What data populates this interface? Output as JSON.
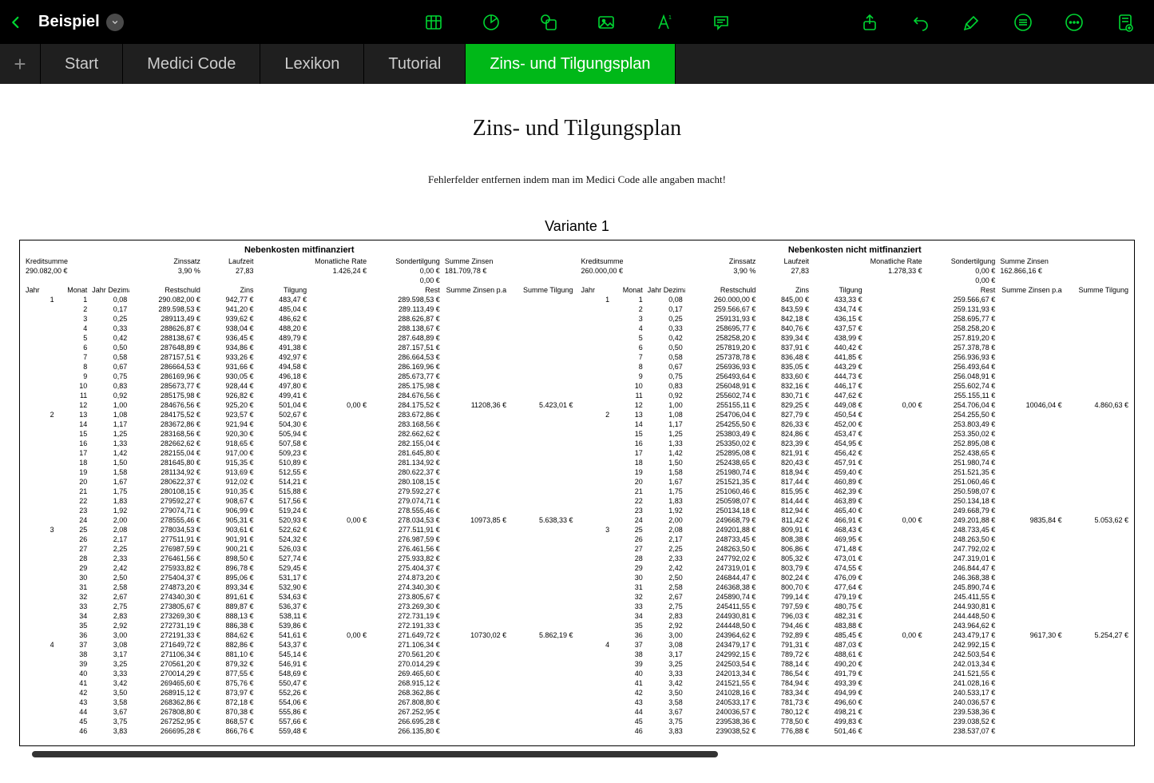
{
  "header": {
    "doc_title": "Beispiel"
  },
  "tabs": {
    "items": [
      "Start",
      "Medici Code",
      "Lexikon",
      "Tutorial",
      "Zins- und Tilgungsplan"
    ],
    "active_index": 4
  },
  "doc": {
    "heading": "Zins- und Tilgungsplan",
    "sub": "Fehlerfelder entfernen indem man im Medici Code alle angaben macht!",
    "variant": "Variante 1",
    "section_left": "Nebenkosten mitfinanziert",
    "section_right": "Nebenkosten nicht mitfinanziert",
    "summary_labels": {
      "kreditsumme": "Kreditsumme",
      "zinssatz": "Zinssatz",
      "laufzeit": "Laufzeit",
      "monatliche_rate": "Monatliche Rate",
      "sondertilgung": "Sondertilgung",
      "summe_zinsen": "Summe Zinsen"
    },
    "col_labels": {
      "jahr": "Jahr",
      "monat": "Monat",
      "jahr_dezimal": "Jahr Dezimal",
      "restschuld": "Restschuld",
      "zins": "Zins",
      "tilgung": "Tilgung",
      "sond": "Sondertilgung",
      "rest": "Rest",
      "sz_pa": "Summe Zinsen p.a",
      "s_tilg": "Summe Tilgung"
    }
  },
  "left": {
    "summary": {
      "kreditsumme": "290.082,00 €",
      "zinssatz": "3,90 %",
      "laufzeit": "27,83",
      "monatliche_rate": "1.426,24 €",
      "sondertilgung": "0,00 €",
      "summe_zinsen": "181.709,78 €"
    },
    "rows": [
      {
        "jahr": "1",
        "mon": "1",
        "jd": "0,08",
        "rest": "290.082,00 €",
        "zins": "942,77 €",
        "tilg": "483,47 €",
        "restn": "289.598,53 €"
      },
      {
        "mon": "2",
        "jd": "0,17",
        "rest": "289.598,53 €",
        "zins": "941,20 €",
        "tilg": "485,04 €",
        "restn": "289.113,49 €"
      },
      {
        "mon": "3",
        "jd": "0,25",
        "rest": "289113,49 €",
        "zins": "939,62 €",
        "tilg": "486,62 €",
        "restn": "288.626,87 €"
      },
      {
        "mon": "4",
        "jd": "0,33",
        "rest": "288626,87 €",
        "zins": "938,04 €",
        "tilg": "488,20 €",
        "restn": "288.138,67 €"
      },
      {
        "mon": "5",
        "jd": "0,42",
        "rest": "288138,67 €",
        "zins": "936,45 €",
        "tilg": "489,79 €",
        "restn": "287.648,89 €"
      },
      {
        "mon": "6",
        "jd": "0,50",
        "rest": "287648,89 €",
        "zins": "934,86 €",
        "tilg": "491,38 €",
        "restn": "287.157,51 €"
      },
      {
        "mon": "7",
        "jd": "0,58",
        "rest": "287157,51 €",
        "zins": "933,26 €",
        "tilg": "492,97 €",
        "restn": "286.664,53 €"
      },
      {
        "mon": "8",
        "jd": "0,67",
        "rest": "286664,53 €",
        "zins": "931,66 €",
        "tilg": "494,58 €",
        "restn": "286.169,96 €"
      },
      {
        "mon": "9",
        "jd": "0,75",
        "rest": "286169,96 €",
        "zins": "930,05 €",
        "tilg": "496,18 €",
        "restn": "285.673,77 €"
      },
      {
        "mon": "10",
        "jd": "0,83",
        "rest": "285673,77 €",
        "zins": "928,44 €",
        "tilg": "497,80 €",
        "restn": "285.175,98 €"
      },
      {
        "mon": "11",
        "jd": "0,92",
        "rest": "285175,98 €",
        "zins": "926,82 €",
        "tilg": "499,41 €",
        "restn": "284.676,56 €"
      },
      {
        "mon": "12",
        "jd": "1,00",
        "rest": "284676,56 €",
        "zins": "925,20 €",
        "tilg": "501,04 €",
        "sond": "0,00 €",
        "restn": "284.175,52 €",
        "szpa": "11208,36 €",
        "stilg": "5.423,01 €"
      },
      {
        "jahr": "2",
        "mon": "13",
        "jd": "1,08",
        "rest": "284175,52 €",
        "zins": "923,57 €",
        "tilg": "502,67 €",
        "restn": "283.672,86 €"
      },
      {
        "mon": "14",
        "jd": "1,17",
        "rest": "283672,86 €",
        "zins": "921,94 €",
        "tilg": "504,30 €",
        "restn": "283.168,56 €"
      },
      {
        "mon": "15",
        "jd": "1,25",
        "rest": "283168,56 €",
        "zins": "920,30 €",
        "tilg": "505,94 €",
        "restn": "282.662,62 €"
      },
      {
        "mon": "16",
        "jd": "1,33",
        "rest": "282662,62 €",
        "zins": "918,65 €",
        "tilg": "507,58 €",
        "restn": "282.155,04 €"
      },
      {
        "mon": "17",
        "jd": "1,42",
        "rest": "282155,04 €",
        "zins": "917,00 €",
        "tilg": "509,23 €",
        "restn": "281.645,80 €"
      },
      {
        "mon": "18",
        "jd": "1,50",
        "rest": "281645,80 €",
        "zins": "915,35 €",
        "tilg": "510,89 €",
        "restn": "281.134,92 €"
      },
      {
        "mon": "19",
        "jd": "1,58",
        "rest": "281134,92 €",
        "zins": "913,69 €",
        "tilg": "512,55 €",
        "restn": "280.622,37 €"
      },
      {
        "mon": "20",
        "jd": "1,67",
        "rest": "280622,37 €",
        "zins": "912,02 €",
        "tilg": "514,21 €",
        "restn": "280.108,15 €"
      },
      {
        "mon": "21",
        "jd": "1,75",
        "rest": "280108,15 €",
        "zins": "910,35 €",
        "tilg": "515,88 €",
        "restn": "279.592,27 €"
      },
      {
        "mon": "22",
        "jd": "1,83",
        "rest": "279592,27 €",
        "zins": "908,67 €",
        "tilg": "517,56 €",
        "restn": "279.074,71 €"
      },
      {
        "mon": "23",
        "jd": "1,92",
        "rest": "279074,71 €",
        "zins": "906,99 €",
        "tilg": "519,24 €",
        "restn": "278.555,46 €"
      },
      {
        "mon": "24",
        "jd": "2,00",
        "rest": "278555,46 €",
        "zins": "905,31 €",
        "tilg": "520,93 €",
        "sond": "0,00 €",
        "restn": "278.034,53 €",
        "szpa": "10973,85 €",
        "stilg": "5.638,33 €"
      },
      {
        "jahr": "3",
        "mon": "25",
        "jd": "2,08",
        "rest": "278034,53 €",
        "zins": "903,61 €",
        "tilg": "522,62 €",
        "restn": "277.511,91 €"
      },
      {
        "mon": "26",
        "jd": "2,17",
        "rest": "277511,91 €",
        "zins": "901,91 €",
        "tilg": "524,32 €",
        "restn": "276.987,59 €"
      },
      {
        "mon": "27",
        "jd": "2,25",
        "rest": "276987,59 €",
        "zins": "900,21 €",
        "tilg": "526,03 €",
        "restn": "276.461,56 €"
      },
      {
        "mon": "28",
        "jd": "2,33",
        "rest": "276461,56 €",
        "zins": "898,50 €",
        "tilg": "527,74 €",
        "restn": "275.933,82 €"
      },
      {
        "mon": "29",
        "jd": "2,42",
        "rest": "275933,82 €",
        "zins": "896,78 €",
        "tilg": "529,45 €",
        "restn": "275.404,37 €"
      },
      {
        "mon": "30",
        "jd": "2,50",
        "rest": "275404,37 €",
        "zins": "895,06 €",
        "tilg": "531,17 €",
        "restn": "274.873,20 €"
      },
      {
        "mon": "31",
        "jd": "2,58",
        "rest": "274873,20 €",
        "zins": "893,34 €",
        "tilg": "532,90 €",
        "restn": "274.340,30 €"
      },
      {
        "mon": "32",
        "jd": "2,67",
        "rest": "274340,30 €",
        "zins": "891,61 €",
        "tilg": "534,63 €",
        "restn": "273.805,67 €"
      },
      {
        "mon": "33",
        "jd": "2,75",
        "rest": "273805,67 €",
        "zins": "889,87 €",
        "tilg": "536,37 €",
        "restn": "273.269,30 €"
      },
      {
        "mon": "34",
        "jd": "2,83",
        "rest": "273269,30 €",
        "zins": "888,13 €",
        "tilg": "538,11 €",
        "restn": "272.731,19 €"
      },
      {
        "mon": "35",
        "jd": "2,92",
        "rest": "272731,19 €",
        "zins": "886,38 €",
        "tilg": "539,86 €",
        "restn": "272.191,33 €"
      },
      {
        "mon": "36",
        "jd": "3,00",
        "rest": "272191,33 €",
        "zins": "884,62 €",
        "tilg": "541,61 €",
        "sond": "0,00 €",
        "restn": "271.649,72 €",
        "szpa": "10730,02 €",
        "stilg": "5.862,19 €"
      },
      {
        "jahr": "4",
        "mon": "37",
        "jd": "3,08",
        "rest": "271649,72 €",
        "zins": "882,86 €",
        "tilg": "543,37 €",
        "restn": "271.106,34 €"
      },
      {
        "mon": "38",
        "jd": "3,17",
        "rest": "271106,34 €",
        "zins": "881,10 €",
        "tilg": "545,14 €",
        "restn": "270.561,20 €"
      },
      {
        "mon": "39",
        "jd": "3,25",
        "rest": "270561,20 €",
        "zins": "879,32 €",
        "tilg": "546,91 €",
        "restn": "270.014,29 €"
      },
      {
        "mon": "40",
        "jd": "3,33",
        "rest": "270014,29 €",
        "zins": "877,55 €",
        "tilg": "548,69 €",
        "restn": "269.465,60 €"
      },
      {
        "mon": "41",
        "jd": "3,42",
        "rest": "269465,60 €",
        "zins": "875,76 €",
        "tilg": "550,47 €",
        "restn": "268.915,12 €"
      },
      {
        "mon": "42",
        "jd": "3,50",
        "rest": "268915,12 €",
        "zins": "873,97 €",
        "tilg": "552,26 €",
        "restn": "268.362,86 €"
      },
      {
        "mon": "43",
        "jd": "3,58",
        "rest": "268362,86 €",
        "zins": "872,18 €",
        "tilg": "554,06 €",
        "restn": "267.808,80 €"
      },
      {
        "mon": "44",
        "jd": "3,67",
        "rest": "267808,80 €",
        "zins": "870,38 €",
        "tilg": "555,86 €",
        "restn": "267.252,95 €"
      },
      {
        "mon": "45",
        "jd": "3,75",
        "rest": "267252,95 €",
        "zins": "868,57 €",
        "tilg": "557,66 €",
        "restn": "266.695,28 €"
      },
      {
        "mon": "46",
        "jd": "3,83",
        "rest": "266695,28 €",
        "zins": "866,76 €",
        "tilg": "559,48 €",
        "restn": "266.135,80 €"
      }
    ]
  },
  "right": {
    "summary": {
      "kreditsumme": "260.000,00 €",
      "zinssatz": "3,90 %",
      "laufzeit": "27,83",
      "monatliche_rate": "1.278,33 €",
      "sondertilgung": "0,00 €",
      "summe_zinsen": "162.866,16 €"
    },
    "rows": [
      {
        "jahr": "1",
        "mon": "1",
        "jd": "0,08",
        "rest": "260.000,00 €",
        "zins": "845,00 €",
        "tilg": "433,33 €",
        "restn": "259.566,67 €"
      },
      {
        "mon": "2",
        "jd": "0,17",
        "rest": "259.566,67 €",
        "zins": "843,59 €",
        "tilg": "434,74 €",
        "restn": "259.131,93 €"
      },
      {
        "mon": "3",
        "jd": "0,25",
        "rest": "259131,93 €",
        "zins": "842,18 €",
        "tilg": "436,15 €",
        "restn": "258.695,77 €"
      },
      {
        "mon": "4",
        "jd": "0,33",
        "rest": "258695,77 €",
        "zins": "840,76 €",
        "tilg": "437,57 €",
        "restn": "258.258,20 €"
      },
      {
        "mon": "5",
        "jd": "0,42",
        "rest": "258258,20 €",
        "zins": "839,34 €",
        "tilg": "438,99 €",
        "restn": "257.819,20 €"
      },
      {
        "mon": "6",
        "jd": "0,50",
        "rest": "257819,20 €",
        "zins": "837,91 €",
        "tilg": "440,42 €",
        "restn": "257.378,78 €"
      },
      {
        "mon": "7",
        "jd": "0,58",
        "rest": "257378,78 €",
        "zins": "836,48 €",
        "tilg": "441,85 €",
        "restn": "256.936,93 €"
      },
      {
        "mon": "8",
        "jd": "0,67",
        "rest": "256936,93 €",
        "zins": "835,05 €",
        "tilg": "443,29 €",
        "restn": "256.493,64 €"
      },
      {
        "mon": "9",
        "jd": "0,75",
        "rest": "256493,64 €",
        "zins": "833,60 €",
        "tilg": "444,73 €",
        "restn": "256.048,91 €"
      },
      {
        "mon": "10",
        "jd": "0,83",
        "rest": "256048,91 €",
        "zins": "832,16 €",
        "tilg": "446,17 €",
        "restn": "255.602,74 €"
      },
      {
        "mon": "11",
        "jd": "0,92",
        "rest": "255602,74 €",
        "zins": "830,71 €",
        "tilg": "447,62 €",
        "restn": "255.155,11 €"
      },
      {
        "mon": "12",
        "jd": "1,00",
        "rest": "255155,11 €",
        "zins": "829,25 €",
        "tilg": "449,08 €",
        "sond": "0,00 €",
        "restn": "254.706,04 €",
        "szpa": "10046,04 €",
        "stilg": "4.860,63 €"
      },
      {
        "jahr": "2",
        "mon": "13",
        "jd": "1,08",
        "rest": "254706,04 €",
        "zins": "827,79 €",
        "tilg": "450,54 €",
        "restn": "254.255,50 €"
      },
      {
        "mon": "14",
        "jd": "1,17",
        "rest": "254255,50 €",
        "zins": "826,33 €",
        "tilg": "452,00 €",
        "restn": "253.803,49 €"
      },
      {
        "mon": "15",
        "jd": "1,25",
        "rest": "253803,49 €",
        "zins": "824,86 €",
        "tilg": "453,47 €",
        "restn": "253.350,02 €"
      },
      {
        "mon": "16",
        "jd": "1,33",
        "rest": "253350,02 €",
        "zins": "823,39 €",
        "tilg": "454,95 €",
        "restn": "252.895,08 €"
      },
      {
        "mon": "17",
        "jd": "1,42",
        "rest": "252895,08 €",
        "zins": "821,91 €",
        "tilg": "456,42 €",
        "restn": "252.438,65 €"
      },
      {
        "mon": "18",
        "jd": "1,50",
        "rest": "252438,65 €",
        "zins": "820,43 €",
        "tilg": "457,91 €",
        "restn": "251.980,74 €"
      },
      {
        "mon": "19",
        "jd": "1,58",
        "rest": "251980,74 €",
        "zins": "818,94 €",
        "tilg": "459,40 €",
        "restn": "251.521,35 €"
      },
      {
        "mon": "20",
        "jd": "1,67",
        "rest": "251521,35 €",
        "zins": "817,44 €",
        "tilg": "460,89 €",
        "restn": "251.060,46 €"
      },
      {
        "mon": "21",
        "jd": "1,75",
        "rest": "251060,46 €",
        "zins": "815,95 €",
        "tilg": "462,39 €",
        "restn": "250.598,07 €"
      },
      {
        "mon": "22",
        "jd": "1,83",
        "rest": "250598,07 €",
        "zins": "814,44 €",
        "tilg": "463,89 €",
        "restn": "250.134,18 €"
      },
      {
        "mon": "23",
        "jd": "1,92",
        "rest": "250134,18 €",
        "zins": "812,94 €",
        "tilg": "465,40 €",
        "restn": "249.668,79 €"
      },
      {
        "mon": "24",
        "jd": "2,00",
        "rest": "249668,79 €",
        "zins": "811,42 €",
        "tilg": "466,91 €",
        "sond": "0,00 €",
        "restn": "249.201,88 €",
        "szpa": "9835,84 €",
        "stilg": "5.053,62 €"
      },
      {
        "jahr": "3",
        "mon": "25",
        "jd": "2,08",
        "rest": "249201,88 €",
        "zins": "809,91 €",
        "tilg": "468,43 €",
        "restn": "248.733,45 €"
      },
      {
        "mon": "26",
        "jd": "2,17",
        "rest": "248733,45 €",
        "zins": "808,38 €",
        "tilg": "469,95 €",
        "restn": "248.263,50 €"
      },
      {
        "mon": "27",
        "jd": "2,25",
        "rest": "248263,50 €",
        "zins": "806,86 €",
        "tilg": "471,48 €",
        "restn": "247.792,02 €"
      },
      {
        "mon": "28",
        "jd": "2,33",
        "rest": "247792,02 €",
        "zins": "805,32 €",
        "tilg": "473,01 €",
        "restn": "247.319,01 €"
      },
      {
        "mon": "29",
        "jd": "2,42",
        "rest": "247319,01 €",
        "zins": "803,79 €",
        "tilg": "474,55 €",
        "restn": "246.844,47 €"
      },
      {
        "mon": "30",
        "jd": "2,50",
        "rest": "246844,47 €",
        "zins": "802,24 €",
        "tilg": "476,09 €",
        "restn": "246.368,38 €"
      },
      {
        "mon": "31",
        "jd": "2,58",
        "rest": "246368,38 €",
        "zins": "800,70 €",
        "tilg": "477,64 €",
        "restn": "245.890,74 €"
      },
      {
        "mon": "32",
        "jd": "2,67",
        "rest": "245890,74 €",
        "zins": "799,14 €",
        "tilg": "479,19 €",
        "restn": "245.411,55 €"
      },
      {
        "mon": "33",
        "jd": "2,75",
        "rest": "245411,55 €",
        "zins": "797,59 €",
        "tilg": "480,75 €",
        "restn": "244.930,81 €"
      },
      {
        "mon": "34",
        "jd": "2,83",
        "rest": "244930,81 €",
        "zins": "796,03 €",
        "tilg": "482,31 €",
        "restn": "244.448,50 €"
      },
      {
        "mon": "35",
        "jd": "2,92",
        "rest": "244448,50 €",
        "zins": "794,46 €",
        "tilg": "483,88 €",
        "restn": "243.964,62 €"
      },
      {
        "mon": "36",
        "jd": "3,00",
        "rest": "243964,62 €",
        "zins": "792,89 €",
        "tilg": "485,45 €",
        "sond": "0,00 €",
        "restn": "243.479,17 €",
        "szpa": "9617,30 €",
        "stilg": "5.254,27 €"
      },
      {
        "jahr": "4",
        "mon": "37",
        "jd": "3,08",
        "rest": "243479,17 €",
        "zins": "791,31 €",
        "tilg": "487,03 €",
        "restn": "242.992,15 €"
      },
      {
        "mon": "38",
        "jd": "3,17",
        "rest": "242992,15 €",
        "zins": "789,72 €",
        "tilg": "488,61 €",
        "restn": "242.503,54 €"
      },
      {
        "mon": "39",
        "jd": "3,25",
        "rest": "242503,54 €",
        "zins": "788,14 €",
        "tilg": "490,20 €",
        "restn": "242.013,34 €"
      },
      {
        "mon": "40",
        "jd": "3,33",
        "rest": "242013,34 €",
        "zins": "786,54 €",
        "tilg": "491,79 €",
        "restn": "241.521,55 €"
      },
      {
        "mon": "41",
        "jd": "3,42",
        "rest": "241521,55 €",
        "zins": "784,94 €",
        "tilg": "493,39 €",
        "restn": "241.028,16 €"
      },
      {
        "mon": "42",
        "jd": "3,50",
        "rest": "241028,16 €",
        "zins": "783,34 €",
        "tilg": "494,99 €",
        "restn": "240.533,17 €"
      },
      {
        "mon": "43",
        "jd": "3,58",
        "rest": "240533,17 €",
        "zins": "781,73 €",
        "tilg": "496,60 €",
        "restn": "240.036,57 €"
      },
      {
        "mon": "44",
        "jd": "3,67",
        "rest": "240036,57 €",
        "zins": "780,12 €",
        "tilg": "498,21 €",
        "restn": "239.538,36 €"
      },
      {
        "mon": "45",
        "jd": "3,75",
        "rest": "239538,36 €",
        "zins": "778,50 €",
        "tilg": "499,83 €",
        "restn": "239.038,52 €"
      },
      {
        "mon": "46",
        "jd": "3,83",
        "rest": "239038,52 €",
        "zins": "776,88 €",
        "tilg": "501,46 €",
        "restn": "238.537,07 €"
      }
    ]
  }
}
